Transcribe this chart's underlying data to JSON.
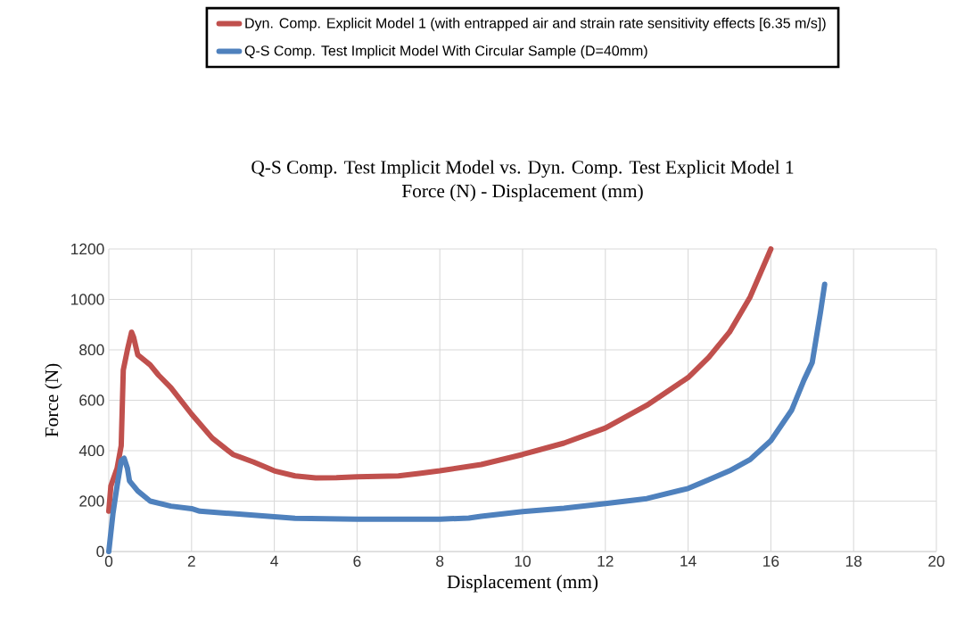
{
  "chart_data": {
    "type": "line",
    "title": "Q-S Comp. Test Implicit Model vs. Dyn. Comp. Test Explicit Model 1",
    "subtitle": "Force (N) - Displacement (mm)",
    "xlabel": "Displacement (mm)",
    "ylabel": "Force (N)",
    "xlim": [
      0,
      20
    ],
    "ylim": [
      0,
      1200
    ],
    "xticks": [
      0,
      2,
      4,
      6,
      8,
      10,
      12,
      14,
      16,
      18,
      20
    ],
    "yticks": [
      0,
      200,
      400,
      600,
      800,
      1000,
      1200
    ],
    "grid": true,
    "legend": "top",
    "marker": "none",
    "line_style": "solid",
    "series": [
      {
        "name": "Dyn. Comp. Explicit Model 1 (with entrapped air and strain rate sensitivity effects [6.35 m/s])",
        "color": "#c0504d",
        "x": [
          0,
          0.05,
          0.2,
          0.3,
          0.35,
          0.45,
          0.55,
          0.6,
          0.7,
          1.0,
          1.2,
          1.5,
          2.0,
          2.5,
          3.0,
          3.5,
          4.0,
          4.5,
          5.0,
          5.5,
          6.0,
          7.0,
          7.5,
          8.0,
          9.0,
          10.0,
          11.0,
          12.0,
          13.0,
          14.0,
          14.5,
          15.0,
          15.5,
          16.0
        ],
        "values": [
          160,
          260,
          330,
          420,
          720,
          800,
          870,
          850,
          780,
          740,
          700,
          650,
          545,
          450,
          385,
          355,
          320,
          300,
          292,
          293,
          296,
          300,
          310,
          320,
          345,
          385,
          430,
          490,
          580,
          690,
          770,
          870,
          1010,
          1200
        ]
      },
      {
        "name": "Q-S Comp. Test Implicit Model With Circular Sample (D=40mm)",
        "color": "#4f81bd",
        "x": [
          0,
          0.1,
          0.2,
          0.3,
          0.37,
          0.45,
          0.5,
          0.7,
          1.0,
          1.5,
          2.0,
          2.2,
          3,
          4,
          4.5,
          6,
          8,
          8.7,
          9,
          10,
          11,
          12,
          13,
          14,
          14.5,
          15,
          15.5,
          16,
          16.5,
          16.8,
          17,
          17.2,
          17.3
        ],
        "values": [
          0,
          150,
          260,
          360,
          370,
          330,
          280,
          240,
          200,
          180,
          170,
          160,
          150,
          138,
          132,
          128,
          128,
          133,
          140,
          158,
          172,
          190,
          210,
          250,
          285,
          320,
          365,
          440,
          560,
          680,
          750,
          950,
          1060
        ]
      }
    ]
  }
}
